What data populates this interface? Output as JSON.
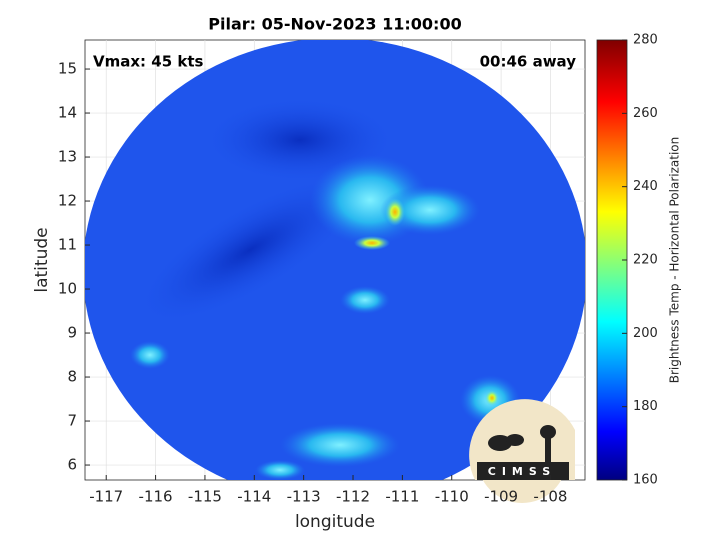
{
  "chart_data": {
    "type": "image",
    "title": "Pilar: 05-Nov-2023 11:00:00",
    "x_label": "longitude",
    "y_label": "latitude",
    "annotations": [
      "Vmax: 45 kts",
      "00:46 away"
    ],
    "xlim": [
      -117.43,
      -107.3
    ],
    "ylim": [
      5.66,
      15.66
    ],
    "xticks": [
      -117,
      -116,
      -115,
      -114,
      -113,
      -112,
      -111,
      -110,
      -109,
      -108
    ],
    "yticks": [
      6,
      7,
      8,
      9,
      10,
      11,
      12,
      13,
      14,
      15
    ],
    "grid": true,
    "colorbar": {
      "label": "Brightness Temp - Horizontal Polarization",
      "lim": [
        160,
        280
      ],
      "ticks": [
        160,
        180,
        200,
        220,
        240,
        260,
        280
      ],
      "colormap": "jet"
    },
    "logo": "CIMSS"
  }
}
